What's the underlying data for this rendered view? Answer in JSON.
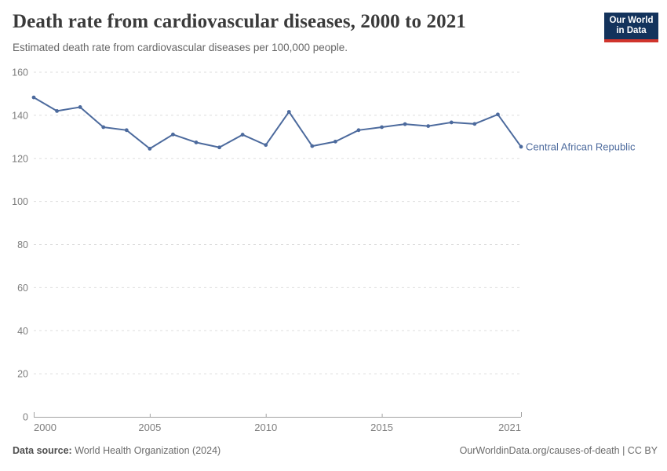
{
  "header": {
    "title": "Death rate from cardiovascular diseases, 2000 to 2021",
    "subtitle": "Estimated death rate from cardiovascular diseases per 100,000 people.",
    "logo": {
      "line1": "Our World",
      "line2": "in Data"
    }
  },
  "chart_data": {
    "type": "line",
    "title": "Death rate from cardiovascular diseases, 2000 to 2021",
    "xlabel": "",
    "ylabel": "",
    "x": [
      2000,
      2001,
      2002,
      2003,
      2004,
      2005,
      2006,
      2007,
      2008,
      2009,
      2010,
      2011,
      2012,
      2013,
      2014,
      2015,
      2016,
      2017,
      2018,
      2019,
      2020,
      2021
    ],
    "series": [
      {
        "name": "Central African Republic",
        "color": "#4c6a9d",
        "values": [
          148.3,
          142.0,
          143.8,
          134.5,
          133.1,
          124.5,
          131.1,
          127.4,
          125.1,
          131.0,
          126.2,
          141.6,
          125.7,
          127.8,
          133.1,
          134.5,
          135.9,
          135.0,
          136.7,
          136.0,
          140.4,
          125.4
        ]
      }
    ],
    "ylim": [
      0,
      160
    ],
    "yticks": [
      0,
      20,
      40,
      60,
      80,
      100,
      120,
      140,
      160
    ],
    "xticks": [
      2000,
      2005,
      2010,
      2015,
      2021
    ],
    "grid": "horizontal-dashed",
    "legend": "end-of-line-label",
    "colors": {
      "gridline": "#dddddd",
      "axis": "#a3a3a3",
      "tick_label": "#7e7e7e"
    }
  },
  "footer": {
    "datasource_label": "Data source:",
    "datasource_value": "World Health Organization (2024)",
    "credit": "OurWorldinData.org/causes-of-death | CC BY"
  }
}
